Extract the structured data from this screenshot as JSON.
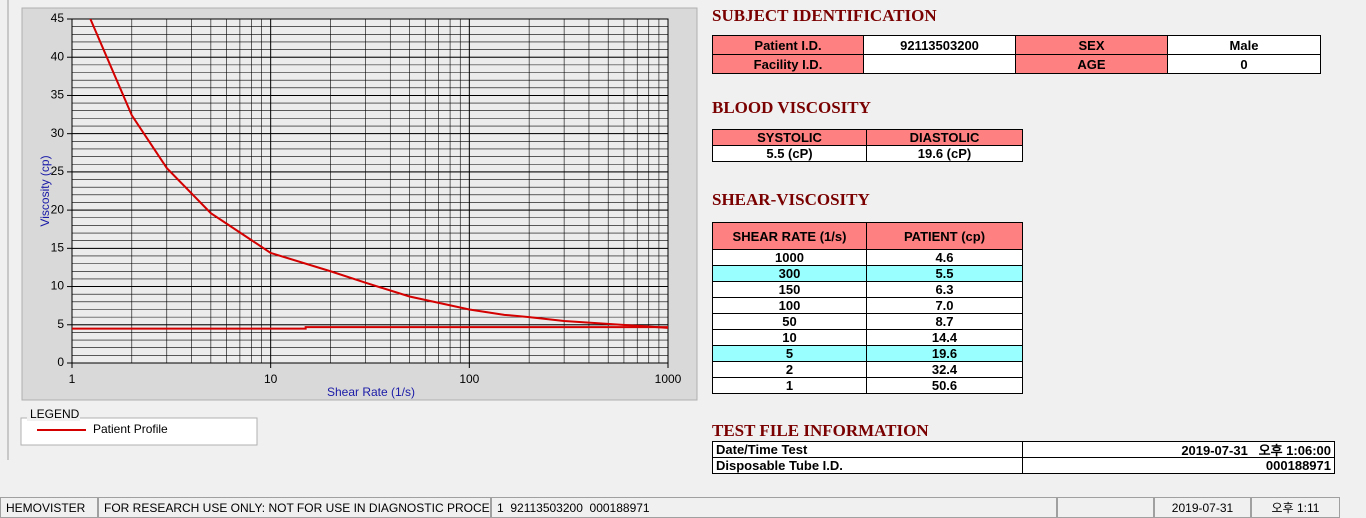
{
  "chart_data": {
    "type": "line",
    "xlabel": "Shear Rate (1/s)",
    "ylabel": "Viscosity (cp)",
    "xscale": "log",
    "xlim": [
      1,
      1000
    ],
    "xticks": [
      1,
      10,
      100,
      1000
    ],
    "ylim": [
      0,
      45
    ],
    "yticks": [
      0,
      5,
      10,
      15,
      20,
      25,
      30,
      35,
      40,
      45
    ],
    "grid": true,
    "minor_grid": true,
    "legend_title": "LEGEND",
    "series": [
      {
        "name": "Patient Profile",
        "color": "#d40000",
        "x": [
          1,
          2,
          3,
          5,
          10,
          20,
          30,
          50,
          100,
          150,
          200,
          300,
          1000
        ],
        "values": [
          50.6,
          32.4,
          25.5,
          19.6,
          14.4,
          12,
          10.5,
          8.7,
          7.0,
          6.3,
          6,
          5.5,
          4.6
        ]
      },
      {
        "color": "#d40000",
        "x": [
          1,
          15,
          15,
          1000
        ],
        "values": [
          4.5,
          4.5,
          4.7,
          4.7
        ]
      }
    ]
  },
  "subject": {
    "title": "SUBJECT IDENTIFICATION",
    "rows": [
      [
        "Patient I.D.",
        "92113503200",
        "SEX",
        "Male"
      ],
      [
        "Facility I.D.",
        null,
        "AGE",
        "0"
      ]
    ]
  },
  "blood_viscosity": {
    "title": "BLOOD VISCOSITY",
    "headers": [
      "SYSTOLIC",
      "DIASTOLIC"
    ],
    "values": [
      "5.5 (cP)",
      "19.6 (cP)"
    ]
  },
  "shear_viscosity": {
    "title": "SHEAR-VISCOSITY",
    "headers": [
      "SHEAR RATE (1/s)",
      "PATIENT (cp)"
    ],
    "highlighted_rows": [
      1,
      6
    ],
    "rows": [
      [
        "1000",
        "4.6"
      ],
      [
        "300",
        "5.5"
      ],
      [
        "150",
        "6.3"
      ],
      [
        "100",
        "7.0"
      ],
      [
        "50",
        "8.7"
      ],
      [
        "10",
        "14.4"
      ],
      [
        "5",
        "19.6"
      ],
      [
        "2",
        "32.4"
      ],
      [
        "1",
        "50.6"
      ]
    ]
  },
  "test_file": {
    "title": "TEST FILE INFORMATION",
    "rows": [
      [
        "Date/Time Test",
        "2019-07-31   오후 1:06:00"
      ],
      [
        "Disposable Tube I.D.",
        "000188971"
      ]
    ]
  },
  "status_bar": [
    "HEMOVISTER",
    "FOR RESEARCH USE ONLY: NOT FOR USE IN DIAGNOSTIC PROCEDURES",
    "1  92113503200  000188971",
    null,
    "2019-07-31",
    "오후 1:11"
  ]
}
